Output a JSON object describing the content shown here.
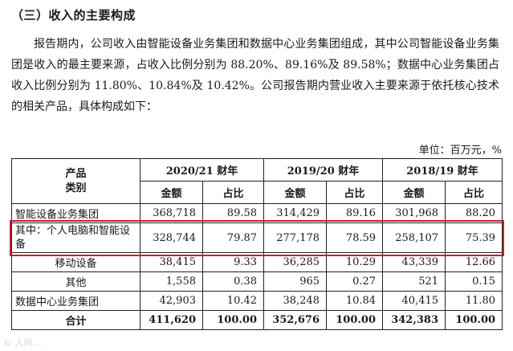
{
  "heading": "（三）收入的主要构成",
  "paragraph": "报告期内，公司收入由智能设备业务集团和数据中心业务集团组成，其中公司智能设备业务集团是收入的最主要来源，占收入比例分别为 88.20%、89.16%及 89.58%；数据中心业务集团占收入比例分别为 11.80%、10.84%及 10.42%。公司报告期内营业收入主要来源于依托核心技术的相关产品，具体构成如下：",
  "unit_note": "单位：百万元，%",
  "table": {
    "category_header_line1": "产品",
    "category_header_line2": "类别",
    "periods": [
      "2020/21 财年",
      "2019/20 财年",
      "2018/19 财年"
    ],
    "sub_headers": {
      "amount": "金额",
      "ratio": "占比"
    },
    "rows": [
      {
        "label": "智能设备业务集团",
        "values": [
          "368,718",
          "89.58",
          "314,429",
          "89.16",
          "301,968",
          "88.20"
        ]
      },
      {
        "label": "其中：个人电脑和智能设备",
        "values": [
          "328,744",
          "79.87",
          "277,178",
          "78.59",
          "258,107",
          "75.39"
        ]
      },
      {
        "label": "移动设备",
        "values": [
          "38,415",
          "9.33",
          "36,285",
          "10.29",
          "43,339",
          "12.66"
        ]
      },
      {
        "label": "其他",
        "values": [
          "1,558",
          "0.38",
          "965",
          "0.27",
          "521",
          "0.15"
        ]
      },
      {
        "label": "数据中心业务集团",
        "values": [
          "42,903",
          "10.42",
          "38,248",
          "10.84",
          "40,415",
          "11.80"
        ]
      },
      {
        "label": "合计",
        "values": [
          "411,620",
          "100.00",
          "352,676",
          "100.00",
          "342,383",
          "100.00"
        ]
      }
    ]
  },
  "highlight_color": "#c8202a",
  "watermark": "© 人间...."
}
